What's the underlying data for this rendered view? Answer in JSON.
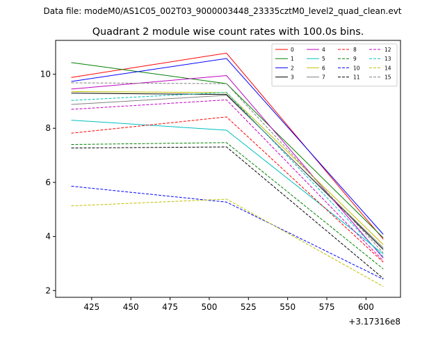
{
  "chart_data": {
    "type": "line",
    "suptitle": "Data file: modeM0/AS1C05_002T03_9000003448_23335cztM0_level2_quad_clean.evt",
    "title": "Quadrant 2 module wise count rates with 100.0s bins.",
    "xlabel": "",
    "ylabel": "",
    "x_offset_label": "+3.17316e8",
    "xlim": [
      402,
      622
    ],
    "ylim": [
      1.75,
      11.25
    ],
    "x": [
      412,
      511,
      611
    ],
    "xticks": [
      425,
      450,
      475,
      500,
      525,
      550,
      575,
      600
    ],
    "yticks": [
      2,
      4,
      6,
      8,
      10
    ],
    "legend_position": "upper-right",
    "legend_columns": 4,
    "series": [
      {
        "name": "0",
        "color": "#ff0000",
        "dash": false,
        "values": [
          9.88,
          10.78,
          3.9
        ]
      },
      {
        "name": "1",
        "color": "#008000",
        "dash": false,
        "values": [
          10.43,
          9.65,
          3.95
        ]
      },
      {
        "name": "2",
        "color": "#0000ff",
        "dash": false,
        "values": [
          9.73,
          10.58,
          4.08
        ]
      },
      {
        "name": "3",
        "color": "#000000",
        "dash": false,
        "values": [
          9.3,
          9.25,
          3.52
        ]
      },
      {
        "name": "4",
        "color": "#bf00bf",
        "dash": false,
        "values": [
          9.45,
          9.95,
          3.2
        ]
      },
      {
        "name": "5",
        "color": "#00bfbf",
        "dash": false,
        "values": [
          8.3,
          7.93,
          3.35
        ]
      },
      {
        "name": "6",
        "color": "#bfbf00",
        "dash": false,
        "values": [
          9.36,
          9.32,
          3.7
        ]
      },
      {
        "name": "7",
        "color": "#808080",
        "dash": false,
        "values": [
          8.88,
          9.22,
          3.58
        ]
      },
      {
        "name": "8",
        "color": "#ff0000",
        "dash": true,
        "values": [
          7.82,
          8.42,
          3.05
        ]
      },
      {
        "name": "9",
        "color": "#008000",
        "dash": true,
        "values": [
          7.4,
          7.47,
          2.8
        ]
      },
      {
        "name": "10",
        "color": "#0000ff",
        "dash": true,
        "values": [
          5.86,
          5.27,
          2.42
        ]
      },
      {
        "name": "11",
        "color": "#000000",
        "dash": true,
        "values": [
          7.27,
          7.31,
          2.45
        ]
      },
      {
        "name": "12",
        "color": "#bf00bf",
        "dash": true,
        "values": [
          8.7,
          9.05,
          3.1
        ]
      },
      {
        "name": "13",
        "color": "#00bfbf",
        "dash": true,
        "values": [
          9.03,
          9.33,
          3.25
        ]
      },
      {
        "name": "14",
        "color": "#bfbf00",
        "dash": true,
        "values": [
          5.13,
          5.38,
          2.15
        ]
      },
      {
        "name": "15",
        "color": "#808080",
        "dash": true,
        "values": [
          9.68,
          9.65,
          3.4
        ]
      }
    ]
  }
}
